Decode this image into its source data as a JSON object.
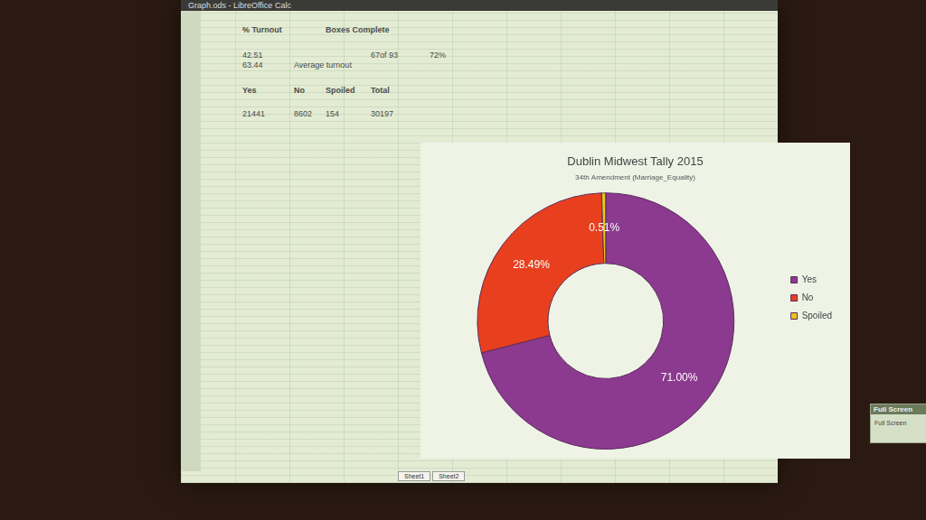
{
  "window": {
    "title": "Graph.ods - LibreOffice Calc"
  },
  "sheet": {
    "rows": [
      [
        "% Turnout",
        null,
        "Boxes Complete",
        null,
        null
      ],
      [
        "42.51",
        null,
        null,
        "67of 93",
        "72%"
      ],
      [
        "63.44",
        "Average turnout",
        null,
        null,
        null
      ],
      [
        "Yes",
        "No",
        "Spoiled",
        "Total",
        null
      ],
      [
        "21441",
        "8602",
        "154",
        "30197",
        null
      ]
    ],
    "tabs": [
      "Sheet1",
      "Sheet2"
    ]
  },
  "fullscreen_toolbar": {
    "title": "Full Screen",
    "button": "Full Screen"
  },
  "chart_data": {
    "type": "doughnut",
    "title": "Dublin Midwest Tally 2015",
    "subtitle": "34th Amendment (Marriage_Equality)",
    "categories": [
      "Yes",
      "No",
      "Spoiled"
    ],
    "values": [
      71.0,
      28.49,
      0.51
    ],
    "value_labels": [
      "71.00%",
      "28.49%",
      "0.51%"
    ],
    "colors": [
      "#8b3a8f",
      "#e8401e",
      "#e6c51a"
    ],
    "legend": "right",
    "data_labels": true
  }
}
